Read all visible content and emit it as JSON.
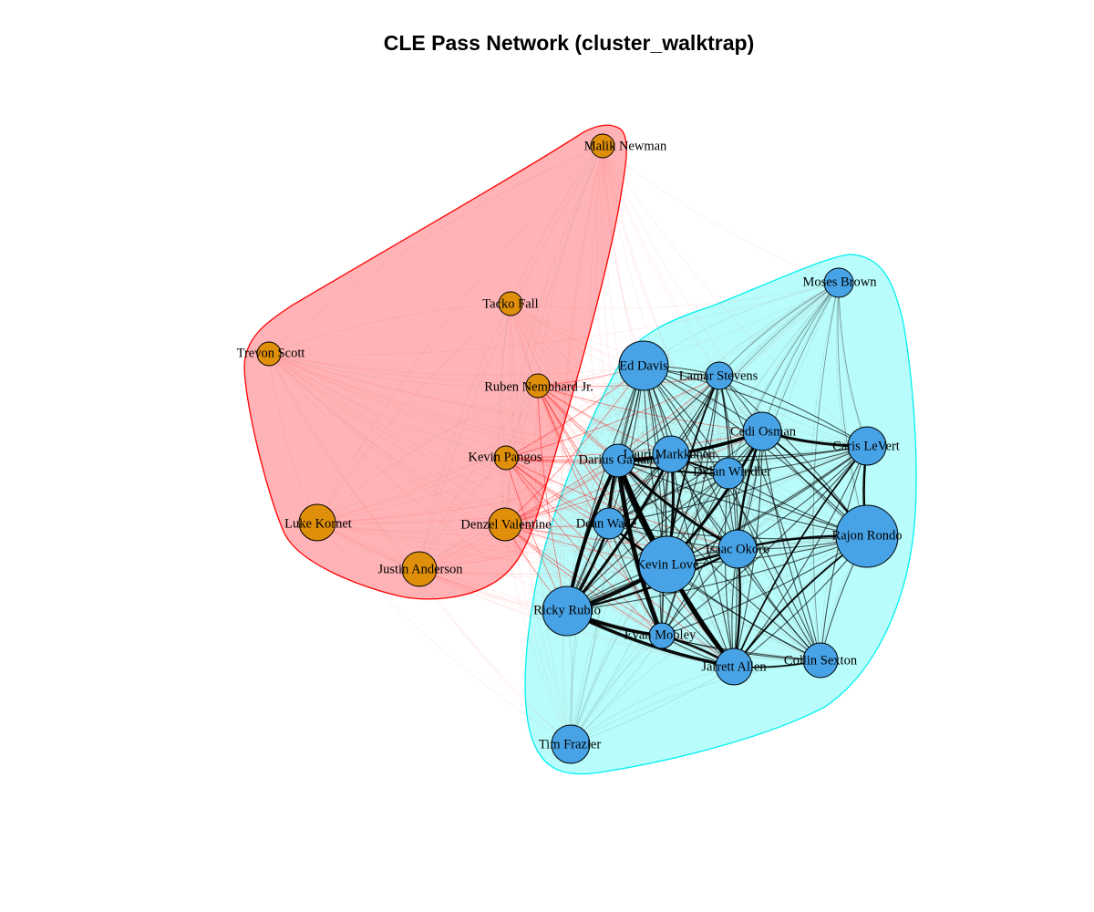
{
  "title": "CLE Pass Network (cluster_walktrap)",
  "colors": {
    "cluster_1_fill": "#ffb3b6",
    "cluster_1_border": "#ff0000",
    "cluster_2_fill": "#b8fdfb",
    "cluster_2_border": "#00f0f0",
    "node_cluster_1": "#e08f0a",
    "node_cluster_2": "#47a3e6",
    "edge_between": "#ff0000",
    "edge_within": "#000000"
  },
  "clusters": [
    {
      "id": 1,
      "members": [
        "Malik Newman",
        "Tacko Fall",
        "Trevon Scott",
        "Ruben Nembhard Jr.",
        "Kevin Pangos",
        "Luke Kornet",
        "Denzel Valentine",
        "Justin Anderson"
      ]
    },
    {
      "id": 2,
      "members": [
        "Moses Brown",
        "Ed Davis",
        "Lamar Stevens",
        "Cedi Osman",
        "Caris LeVert",
        "Lauri Markkanen",
        "Darius Garland",
        "Dylan Windler",
        "Dean Wade",
        "Isaac Okoro",
        "Rajon Rondo",
        "Kevin Love",
        "Ricky Rubio",
        "Evan Mobley",
        "Jarrett Allen",
        "Collin Sexton",
        "Tim Frazier"
      ]
    }
  ],
  "nodes": [
    {
      "name": "Malik Newman",
      "cluster": 1
    },
    {
      "name": "Tacko Fall",
      "cluster": 1
    },
    {
      "name": "Trevon Scott",
      "cluster": 1
    },
    {
      "name": "Ruben Nembhard Jr.",
      "cluster": 1
    },
    {
      "name": "Kevin Pangos",
      "cluster": 1
    },
    {
      "name": "Luke Kornet",
      "cluster": 1
    },
    {
      "name": "Denzel Valentine",
      "cluster": 1
    },
    {
      "name": "Justin Anderson",
      "cluster": 1
    },
    {
      "name": "Moses Brown",
      "cluster": 2
    },
    {
      "name": "Ed Davis",
      "cluster": 2
    },
    {
      "name": "Lamar Stevens",
      "cluster": 2
    },
    {
      "name": "Cedi Osman",
      "cluster": 2
    },
    {
      "name": "Caris LeVert",
      "cluster": 2
    },
    {
      "name": "Lauri Markkanen",
      "cluster": 2
    },
    {
      "name": "Darius Garland",
      "cluster": 2
    },
    {
      "name": "Dylan Windler",
      "cluster": 2
    },
    {
      "name": "Dean Wade",
      "cluster": 2
    },
    {
      "name": "Isaac Okoro",
      "cluster": 2
    },
    {
      "name": "Rajon Rondo",
      "cluster": 2
    },
    {
      "name": "Kevin Love",
      "cluster": 2
    },
    {
      "name": "Ricky Rubio",
      "cluster": 2
    },
    {
      "name": "Evan Mobley",
      "cluster": 2
    },
    {
      "name": "Jarrett Allen",
      "cluster": 2
    },
    {
      "name": "Collin Sexton",
      "cluster": 2
    },
    {
      "name": "Tim Frazier",
      "cluster": 2
    }
  ]
}
